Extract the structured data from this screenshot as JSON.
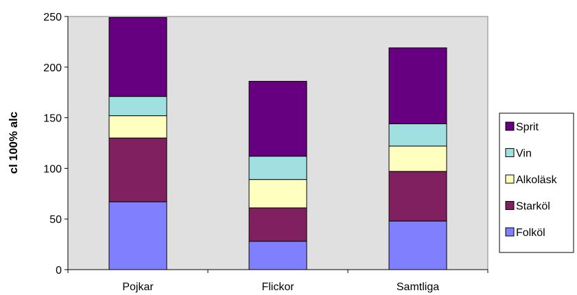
{
  "chart_data": {
    "type": "bar",
    "stacked": true,
    "categories": [
      "Pojkar",
      "Flickor",
      "Samtliga"
    ],
    "ylabel": "cl 100% alc",
    "ylim": [
      0,
      250
    ],
    "yticks": [
      0,
      50,
      100,
      150,
      200,
      250
    ],
    "grid": false,
    "legend_position": "right",
    "plot_background": "#e0e0e0",
    "series": [
      {
        "name": "Folköl",
        "color": "#8080ff",
        "values": [
          67,
          28,
          48
        ]
      },
      {
        "name": "Starköl",
        "color": "#802060",
        "values": [
          63,
          33,
          49
        ]
      },
      {
        "name": "Alkoläsk",
        "color": "#ffffc0",
        "values": [
          22,
          28,
          25
        ]
      },
      {
        "name": "Vin",
        "color": "#a0e0e0",
        "values": [
          19,
          23,
          22
        ]
      },
      {
        "name": "Sprit",
        "color": "#660080",
        "values": [
          78,
          74,
          75
        ]
      }
    ]
  }
}
